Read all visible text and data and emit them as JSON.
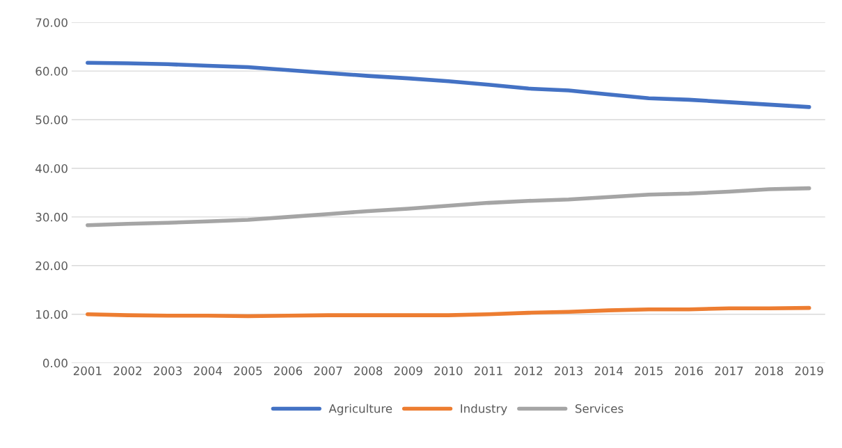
{
  "chart_data": {
    "type": "line",
    "categories": [
      "2001",
      "2002",
      "2003",
      "2004",
      "2005",
      "2006",
      "2007",
      "2008",
      "2009",
      "2010",
      "2011",
      "2012",
      "2013",
      "2014",
      "2015",
      "2016",
      "2017",
      "2018",
      "2019"
    ],
    "series": [
      {
        "name": "Agriculture",
        "color": "#4472c4",
        "values": [
          61.7,
          61.6,
          61.4,
          61.1,
          60.8,
          60.2,
          59.6,
          59.0,
          58.5,
          57.9,
          57.2,
          56.4,
          56.0,
          55.2,
          54.4,
          54.1,
          53.6,
          53.1,
          52.6
        ]
      },
      {
        "name": "Industry",
        "color": "#ed7d31",
        "values": [
          10.0,
          9.8,
          9.7,
          9.7,
          9.6,
          9.7,
          9.8,
          9.8,
          9.8,
          9.8,
          10.0,
          10.3,
          10.5,
          10.8,
          11.0,
          11.0,
          11.2,
          11.2,
          11.3
        ]
      },
      {
        "name": "Services",
        "color": "#a5a5a5",
        "values": [
          28.3,
          28.6,
          28.8,
          29.1,
          29.4,
          30.0,
          30.6,
          31.2,
          31.7,
          32.3,
          32.9,
          33.3,
          33.6,
          34.1,
          34.6,
          34.8,
          35.2,
          35.7,
          35.9
        ]
      }
    ],
    "ylim": [
      0,
      70
    ],
    "yticks": [
      {
        "value": 0,
        "label": "0.00"
      },
      {
        "value": 10,
        "label": "10.00"
      },
      {
        "value": 20,
        "label": "20.00"
      },
      {
        "value": 30,
        "label": "30.00"
      },
      {
        "value": 40,
        "label": "40.00"
      },
      {
        "value": 50,
        "label": "50.00"
      },
      {
        "value": 60,
        "label": "60.00"
      },
      {
        "value": 70,
        "label": "70.00"
      }
    ],
    "grid": "y",
    "legend": "bottom",
    "marker": "none",
    "line_style": "solid"
  }
}
